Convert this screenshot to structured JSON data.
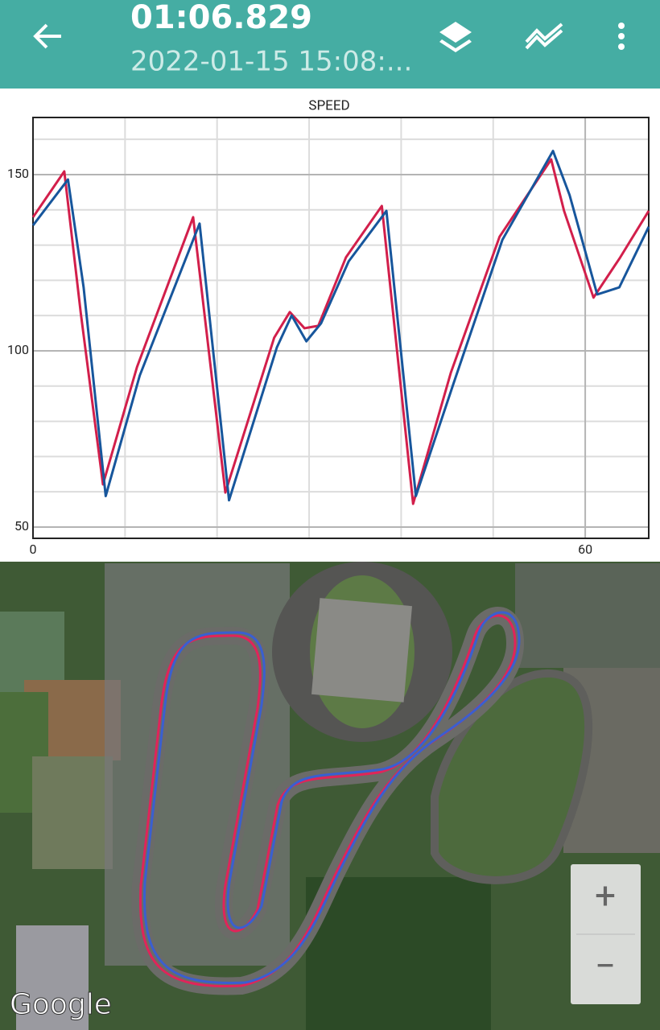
{
  "header": {
    "lap_time": "01:06.829",
    "session": "2022-01-15 15:08:..."
  },
  "chart_data": {
    "type": "line",
    "title": "SPEED",
    "xlim": [
      0,
      66.9
    ],
    "ylim": [
      46.8,
      166.2
    ],
    "xticks": [
      0,
      60
    ],
    "yticks": [
      50,
      100,
      150
    ],
    "xgrid": [
      10,
      20,
      30,
      40,
      50
    ],
    "ygrid": [
      60,
      70,
      80,
      90,
      110,
      120,
      130,
      140,
      160
    ],
    "grid": true,
    "series": [
      {
        "color": "#d21f4b",
        "x": [
          0,
          3.4,
          5.2,
          7.6,
          11.3,
          17.4,
          20.9,
          26.2,
          27.9,
          29.5,
          31,
          34,
          37.9,
          41.3,
          45.4,
          50.7,
          56.3,
          57.7,
          60.9,
          63.8,
          66.9
        ],
        "values": [
          137.9,
          150.9,
          110.5,
          62.1,
          95.4,
          137.9,
          59.8,
          103.7,
          111,
          106.4,
          107.1,
          126.5,
          141.1,
          56.6,
          93.8,
          132.4,
          154.3,
          139.7,
          115.1,
          126.5,
          139.7
        ]
      },
      {
        "color": "#17569c",
        "x": [
          0,
          3.8,
          5.5,
          7.9,
          11.6,
          18.1,
          21.3,
          26.5,
          28.1,
          29.7,
          31.3,
          34.3,
          38.4,
          41.6,
          45.7,
          51,
          56.5,
          58.3,
          61.3,
          63.7,
          66.9
        ],
        "values": [
          135.6,
          148.6,
          118,
          58.8,
          93,
          136.1,
          57.6,
          101,
          110,
          102.7,
          107.8,
          125.4,
          139.7,
          58.8,
          90.8,
          131.5,
          156.7,
          144.2,
          116,
          118,
          135.2
        ]
      }
    ]
  },
  "map": {
    "attribution": "Google",
    "zoom_in": "+",
    "zoom_out": "−"
  }
}
